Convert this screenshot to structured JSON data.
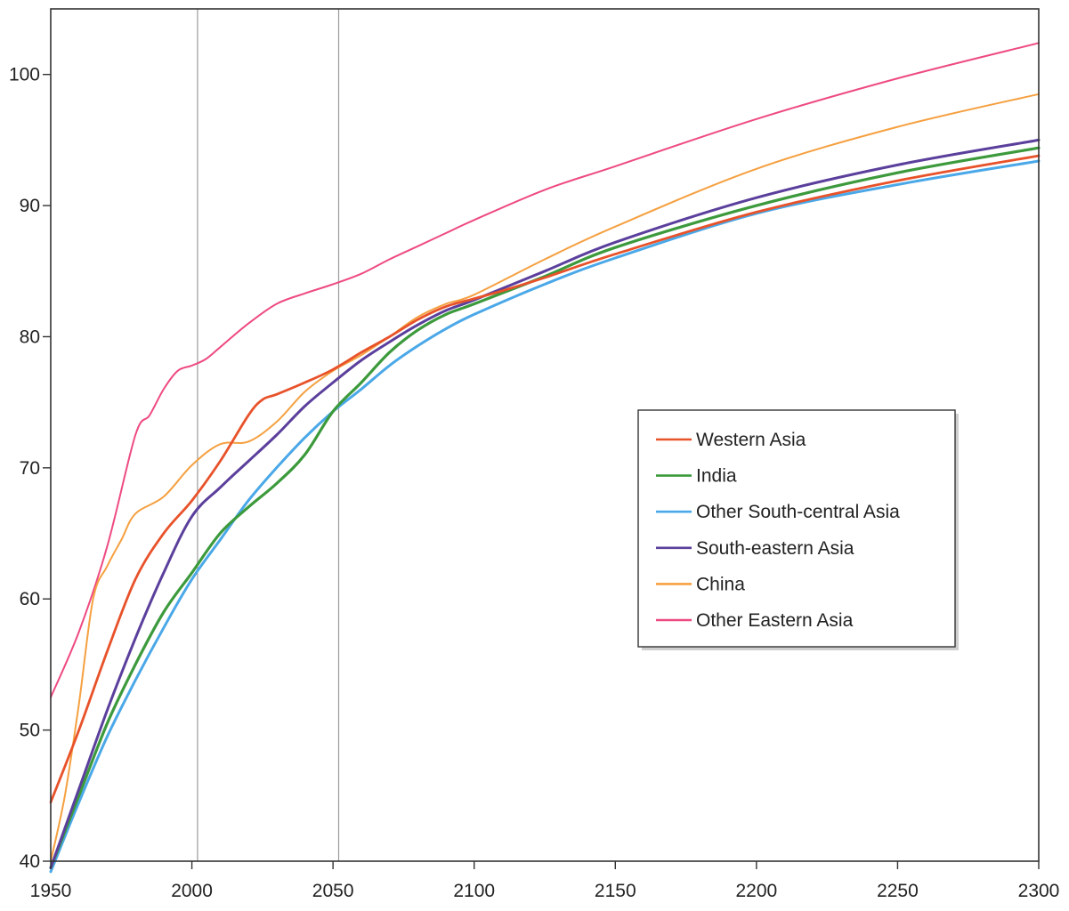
{
  "chart_data": {
    "type": "line",
    "title": "",
    "xlabel": "",
    "ylabel": "",
    "xlim": [
      1950,
      2300
    ],
    "ylim": [
      40,
      105
    ],
    "x_ticks": [
      "1950",
      "2000",
      "2050",
      "2100",
      "2150",
      "2200",
      "2250",
      "2300"
    ],
    "y_ticks": [
      "40",
      "50",
      "60",
      "70",
      "80",
      "90",
      "100"
    ],
    "reference_lines_x": [
      2002,
      2052
    ],
    "legend_position": "center-right",
    "grid": false,
    "series": [
      {
        "name": "Western Asia",
        "color": "#e8522a",
        "points": [
          [
            1950,
            44.5
          ],
          [
            1960,
            50
          ],
          [
            1970,
            56
          ],
          [
            1980,
            61.5
          ],
          [
            1990,
            65
          ],
          [
            2000,
            67.5
          ],
          [
            2010,
            70.5
          ],
          [
            2020,
            74
          ],
          [
            2025,
            75.2
          ],
          [
            2030,
            75.6
          ],
          [
            2040,
            76.5
          ],
          [
            2050,
            77.5
          ],
          [
            2060,
            78.8
          ],
          [
            2070,
            80
          ],
          [
            2080,
            81.3
          ],
          [
            2090,
            82.3
          ],
          [
            2100,
            82.9
          ],
          [
            2110,
            83.5
          ],
          [
            2125,
            84.5
          ],
          [
            2150,
            86.3
          ],
          [
            2200,
            89.5
          ],
          [
            2250,
            91.9
          ],
          [
            2300,
            93.8
          ]
        ]
      },
      {
        "name": "India",
        "color": "#3c9a3c",
        "points": [
          [
            1950,
            39.5
          ],
          [
            1960,
            45
          ],
          [
            1970,
            50.5
          ],
          [
            1980,
            55
          ],
          [
            1990,
            59
          ],
          [
            2000,
            62
          ],
          [
            2010,
            65
          ],
          [
            2020,
            67
          ],
          [
            2030,
            68.8
          ],
          [
            2040,
            71
          ],
          [
            2050,
            74.3
          ],
          [
            2060,
            76.5
          ],
          [
            2070,
            78.8
          ],
          [
            2080,
            80.5
          ],
          [
            2090,
            81.7
          ],
          [
            2100,
            82.5
          ],
          [
            2125,
            84.6
          ],
          [
            2150,
            86.8
          ],
          [
            2200,
            90
          ],
          [
            2250,
            92.5
          ],
          [
            2300,
            94.4
          ]
        ]
      },
      {
        "name": "Other South-central Asia",
        "color": "#4aa8e8",
        "points": [
          [
            1950,
            39.2
          ],
          [
            1960,
            44.5
          ],
          [
            1970,
            49.5
          ],
          [
            1980,
            53.8
          ],
          [
            1990,
            57.8
          ],
          [
            2000,
            61.5
          ],
          [
            2010,
            64.5
          ],
          [
            2020,
            67.5
          ],
          [
            2030,
            70
          ],
          [
            2040,
            72.3
          ],
          [
            2050,
            74.3
          ],
          [
            2060,
            76
          ],
          [
            2070,
            77.8
          ],
          [
            2080,
            79.3
          ],
          [
            2090,
            80.6
          ],
          [
            2100,
            81.7
          ],
          [
            2125,
            84
          ],
          [
            2150,
            86
          ],
          [
            2200,
            89.4
          ],
          [
            2250,
            91.6
          ],
          [
            2300,
            93.4
          ]
        ]
      },
      {
        "name": "South-eastern Asia",
        "color": "#5b3f9c",
        "points": [
          [
            1950,
            39.5
          ],
          [
            1960,
            45.5
          ],
          [
            1970,
            51.5
          ],
          [
            1980,
            57
          ],
          [
            1990,
            62
          ],
          [
            2000,
            66.3
          ],
          [
            2010,
            68.5
          ],
          [
            2020,
            70.5
          ],
          [
            2030,
            72.5
          ],
          [
            2040,
            74.7
          ],
          [
            2050,
            76.5
          ],
          [
            2060,
            78.2
          ],
          [
            2070,
            79.6
          ],
          [
            2080,
            80.9
          ],
          [
            2090,
            82
          ],
          [
            2100,
            82.8
          ],
          [
            2125,
            85
          ],
          [
            2150,
            87.2
          ],
          [
            2200,
            90.6
          ],
          [
            2250,
            93.1
          ],
          [
            2300,
            95
          ]
        ]
      },
      {
        "name": "China",
        "color": "#f5a040",
        "points": [
          [
            1950,
            40
          ],
          [
            1955,
            45
          ],
          [
            1960,
            52
          ],
          [
            1965,
            60
          ],
          [
            1970,
            62.5
          ],
          [
            1975,
            64.5
          ],
          [
            1980,
            66.5
          ],
          [
            1990,
            67.8
          ],
          [
            2000,
            70.2
          ],
          [
            2010,
            71.8
          ],
          [
            2020,
            72
          ],
          [
            2030,
            73.5
          ],
          [
            2040,
            75.8
          ],
          [
            2050,
            77.4
          ],
          [
            2060,
            78.6
          ],
          [
            2070,
            80
          ],
          [
            2080,
            81.5
          ],
          [
            2090,
            82.5
          ],
          [
            2100,
            83.2
          ],
          [
            2125,
            85.9
          ],
          [
            2150,
            88.4
          ],
          [
            2200,
            92.8
          ],
          [
            2250,
            96
          ],
          [
            2300,
            98.5
          ]
        ]
      },
      {
        "name": "Other Eastern Asia",
        "color": "#ee4a82",
        "points": [
          [
            1950,
            52.5
          ],
          [
            1960,
            57.5
          ],
          [
            1970,
            64
          ],
          [
            1980,
            72.5
          ],
          [
            1985,
            74
          ],
          [
            1990,
            76
          ],
          [
            1995,
            77.4
          ],
          [
            2000,
            77.8
          ],
          [
            2005,
            78.3
          ],
          [
            2010,
            79.2
          ],
          [
            2020,
            81
          ],
          [
            2030,
            82.5
          ],
          [
            2040,
            83.3
          ],
          [
            2050,
            84
          ],
          [
            2060,
            84.8
          ],
          [
            2070,
            85.9
          ],
          [
            2080,
            86.9
          ],
          [
            2090,
            87.9
          ],
          [
            2100,
            88.9
          ],
          [
            2125,
            91.2
          ],
          [
            2150,
            93
          ],
          [
            2200,
            96.6
          ],
          [
            2250,
            99.7
          ],
          [
            2300,
            102.4
          ]
        ]
      }
    ]
  }
}
